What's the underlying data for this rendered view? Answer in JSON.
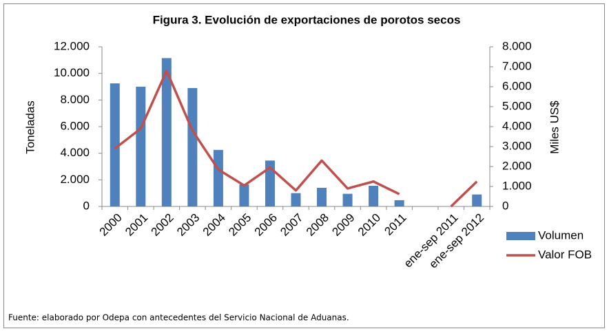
{
  "chart_data": {
    "type": "bar",
    "title": "Figura 3. Evolución de exportaciones de porotos secos",
    "ylabel": "Toneladas",
    "y2label": "Miles US$",
    "categories": [
      "2000",
      "2001",
      "2002",
      "2003",
      "2004",
      "2005",
      "2006",
      "2007",
      "2008",
      "2009",
      "2010",
      "2011",
      null,
      "ene-sep 2011",
      "ene-sep 2012"
    ],
    "series": [
      {
        "name": "Volumen",
        "type": "bar",
        "color": "#4f81bd",
        "axis": "y",
        "values": [
          9250,
          9000,
          11150,
          8900,
          4250,
          1650,
          3450,
          1000,
          1400,
          950,
          1550,
          470,
          null,
          0,
          900
        ]
      },
      {
        "name": "Valor FOB",
        "type": "line",
        "color": "#c0504d",
        "axis": "y2",
        "values": [
          2900,
          3900,
          6800,
          3800,
          1850,
          1050,
          1950,
          800,
          2300,
          900,
          1250,
          620,
          null,
          0,
          1250
        ]
      }
    ],
    "ylim": [
      0,
      12000
    ],
    "yticks": [
      0,
      {
        "value": 2000,
        "label": "2.000"
      },
      {
        "value": 4000,
        "label": "4.000"
      },
      {
        "value": 6000,
        "label": "6.000"
      },
      {
        "value": 8000,
        "label": "8.000"
      },
      {
        "value": 10000,
        "label": "10.000"
      },
      {
        "value": 12000,
        "label": "12.000"
      }
    ],
    "y2lim": [
      0,
      8000
    ],
    "y2ticks": [
      0,
      {
        "value": 1000,
        "label": "1.000"
      },
      {
        "value": 2000,
        "label": "2.000"
      },
      {
        "value": 3000,
        "label": "3.000"
      },
      {
        "value": 4000,
        "label": "4.000"
      },
      {
        "value": 5000,
        "label": "5.000"
      },
      {
        "value": 6000,
        "label": "6.000"
      },
      {
        "value": 7000,
        "label": "7.000"
      },
      {
        "value": 8000,
        "label": "8.000"
      }
    ],
    "grid": false,
    "legend": "right",
    "source": "Fuente: elaborado por Odepa con antecedentes del Servicio Nacional de Aduanas."
  }
}
